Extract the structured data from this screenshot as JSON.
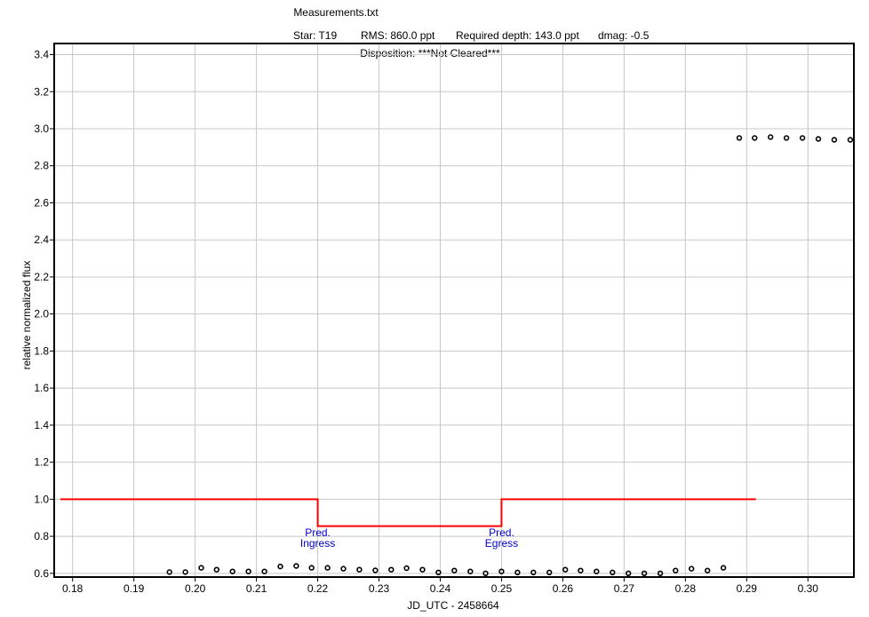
{
  "chart_data": {
    "type": "scatter",
    "title": "Measurements.txt",
    "subtitle_parts": [
      "Star: T19",
      "RMS: 860.0 ppt",
      "Required depth: 143.0 ppt",
      "dmag: -0.5"
    ],
    "disposition": "Disposition: ***Not Cleared***",
    "xlabel": "JD_UTC - 2458664",
    "ylabel": "relative normalized flux",
    "xlim": [
      0.177,
      0.3075
    ],
    "ylim": [
      0.58,
      3.46
    ],
    "xticks": [
      0.18,
      0.19,
      0.2,
      0.21,
      0.22,
      0.23,
      0.24,
      0.25,
      0.26,
      0.27,
      0.28,
      0.29,
      0.3
    ],
    "xtick_labels": [
      "0.18",
      "0.19",
      "0.20",
      "0.21",
      "0.22",
      "0.23",
      "0.24",
      "0.25",
      "0.26",
      "0.27",
      "0.28",
      "0.29",
      "0.30"
    ],
    "yticks": [
      0.6,
      0.8,
      1.0,
      1.2,
      1.4,
      1.6,
      1.8,
      2.0,
      2.2,
      2.4,
      2.6,
      2.8,
      3.0,
      3.2,
      3.4
    ],
    "ytick_labels": [
      "0.6",
      "0.8",
      "1.0",
      "1.2",
      "1.4",
      "1.6",
      "1.8",
      "2.0",
      "2.2",
      "2.4",
      "2.6",
      "2.8",
      "3.0",
      "3.2",
      "3.4"
    ],
    "grid": true,
    "series": [
      {
        "marker": "open-circle",
        "color": "#000000",
        "x": [
          0.1958,
          0.1984,
          0.201,
          0.2035,
          0.2061,
          0.2087,
          0.2113,
          0.2139,
          0.2165,
          0.219,
          0.2216,
          0.2242,
          0.2268,
          0.2294,
          0.232,
          0.2345,
          0.2371,
          0.2397,
          0.2423,
          0.2449,
          0.2474,
          0.25,
          0.2526,
          0.2552,
          0.2578,
          0.2604,
          0.2629,
          0.2655,
          0.2681,
          0.2707,
          0.2733,
          0.2759,
          0.2784,
          0.281,
          0.2836,
          0.2862,
          0.2888,
          0.2913,
          0.2939,
          0.2965,
          0.2991,
          0.3017,
          0.3043,
          0.3069
        ],
        "y": [
          0.607,
          0.607,
          0.63,
          0.62,
          0.61,
          0.61,
          0.61,
          0.637,
          0.64,
          0.63,
          0.63,
          0.625,
          0.62,
          0.616,
          0.62,
          0.628,
          0.62,
          0.605,
          0.615,
          0.61,
          0.6,
          0.61,
          0.605,
          0.605,
          0.605,
          0.62,
          0.615,
          0.61,
          0.605,
          0.6,
          0.6,
          0.6,
          0.615,
          0.625,
          0.615,
          0.63,
          2.95,
          2.95,
          2.955,
          2.95,
          2.95,
          2.945,
          2.94,
          2.94
        ]
      }
    ],
    "predicted_model": {
      "color": "#ff0000",
      "x": [
        0.178,
        0.22,
        0.22,
        0.25,
        0.25,
        0.2915
      ],
      "y": [
        1.0,
        1.0,
        0.855,
        0.855,
        1.0,
        1.0
      ]
    },
    "annotations": [
      {
        "line1": "Pred.",
        "line2": "Ingress",
        "x": 0.22,
        "color": "#0000cc"
      },
      {
        "line1": "Pred.",
        "line2": "Egress",
        "x": 0.25,
        "color": "#0000cc"
      }
    ]
  }
}
